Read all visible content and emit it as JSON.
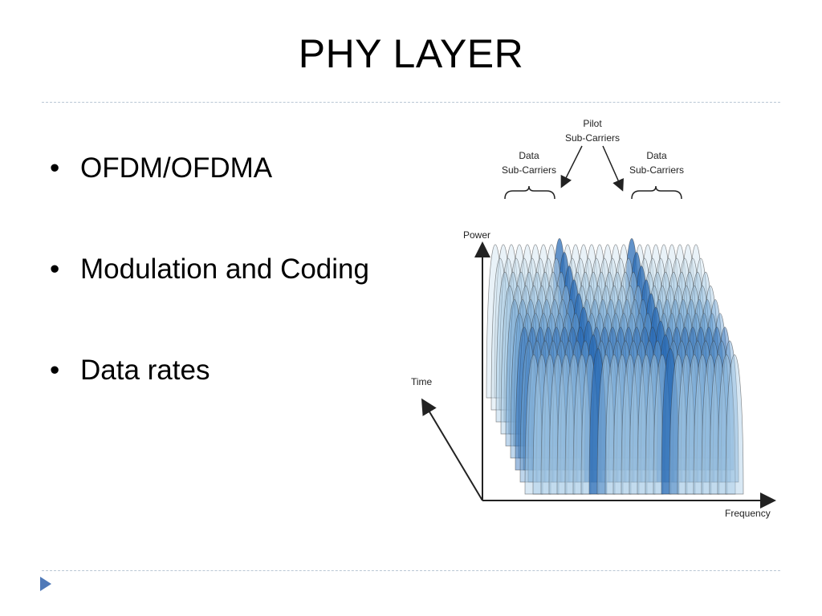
{
  "slide": {
    "title": "PHY LAYER",
    "bullets": [
      "OFDM/OFDMA",
      "Modulation and Coding",
      "Data rates"
    ],
    "bullet_glyph": "•"
  },
  "diagram": {
    "labels": {
      "pilot_line1": "Pilot",
      "pilot_line2": "Sub-Carriers",
      "data_left_line1": "Data",
      "data_left_line2": "Sub-Carriers",
      "data_right_line1": "Data",
      "data_right_line2": "Sub-Carriers",
      "power": "Power",
      "time": "Time",
      "frequency": "Frequency"
    },
    "colors": {
      "pale": "#cfe2f0",
      "light": "#a8cbe6",
      "mid": "#6fa3d4",
      "dark": "#2c6db7",
      "outline": "#333333"
    }
  },
  "footer": {
    "nav_icon": "triangle-right-icon",
    "accent": "#4f79b8"
  }
}
